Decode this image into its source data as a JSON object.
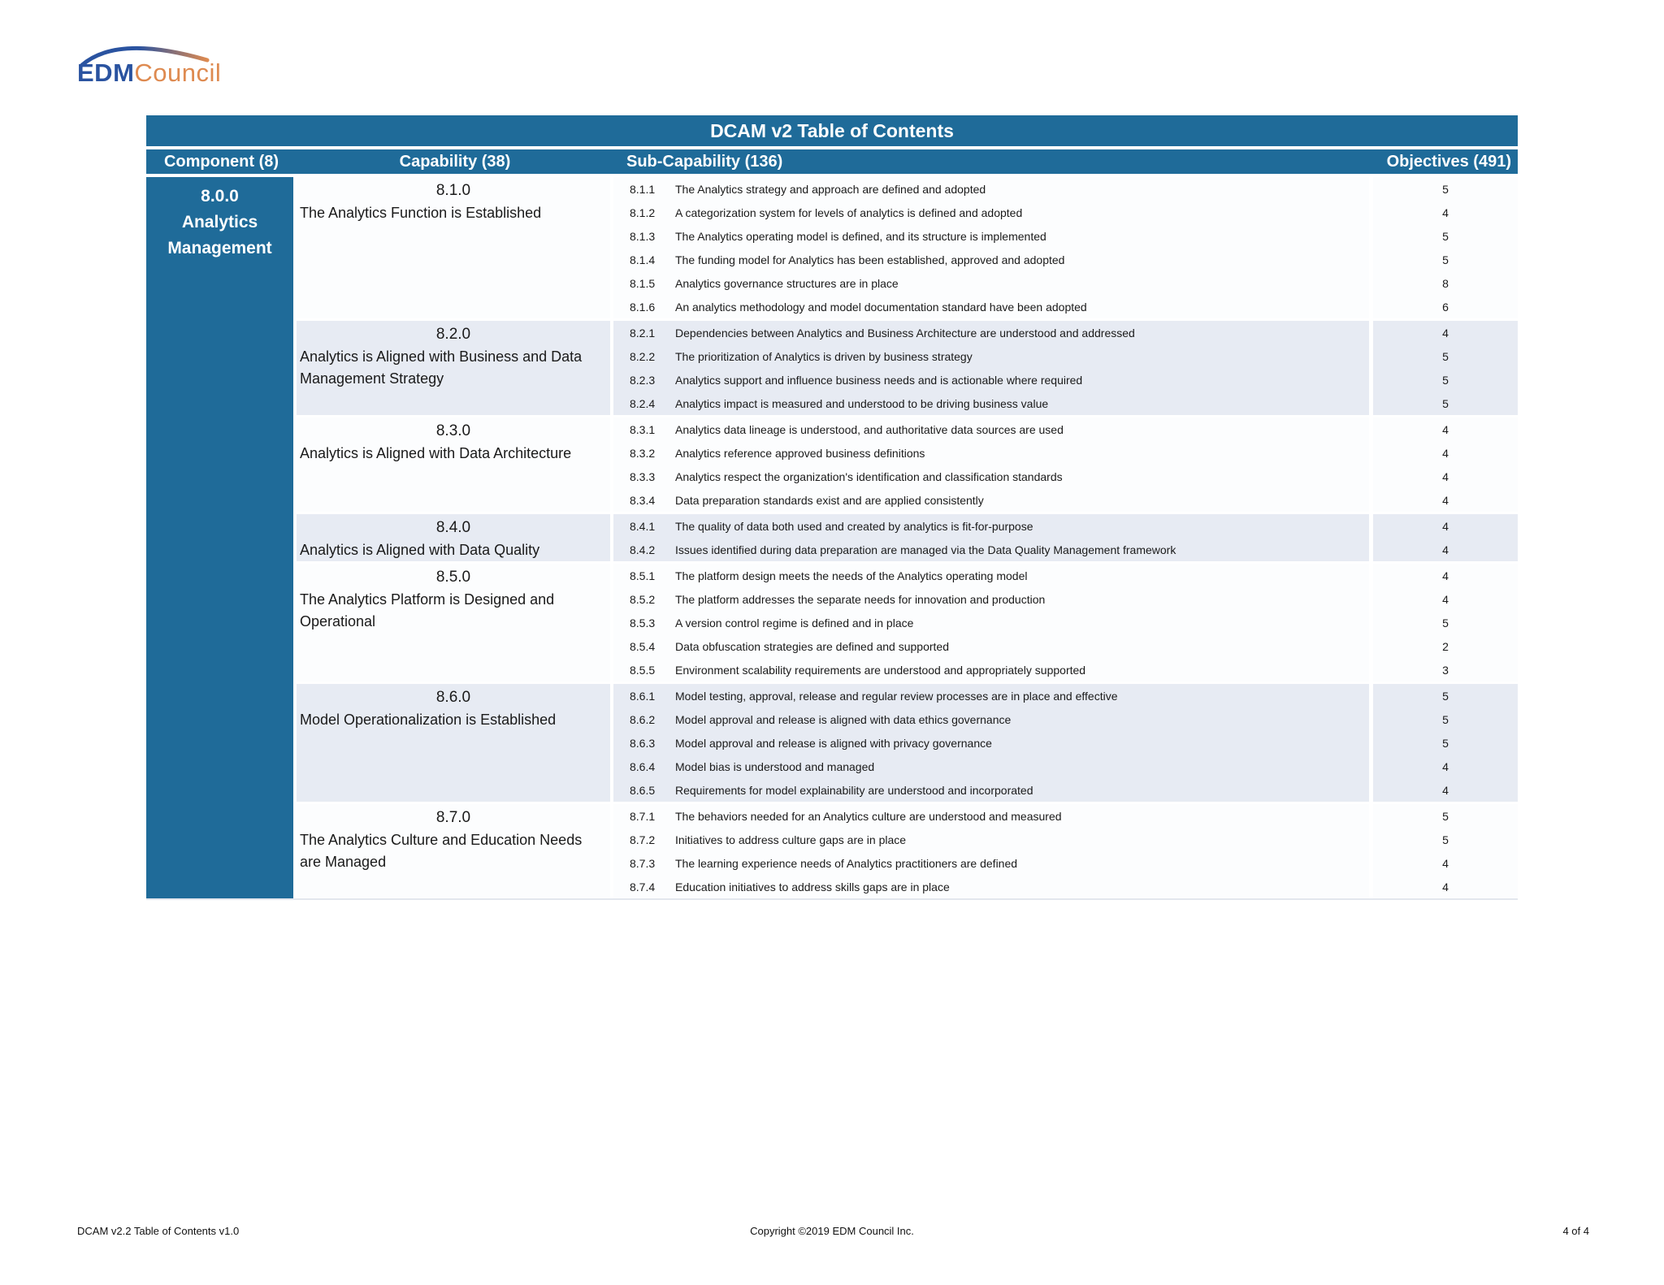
{
  "logo": {
    "edm": "EDM",
    "council": "Council"
  },
  "colors": {
    "header_blue": "#1f6b99",
    "shaded_row": "#e7ebf3",
    "logo_blue": "#2a53a0",
    "logo_orange": "#de8a50"
  },
  "table": {
    "title": "DCAM v2 Table of Contents",
    "columns": {
      "component": "Component (8)",
      "capability": "Capability (38)",
      "sub_capability": "Sub-Capability (136)",
      "objectives": "Objectives (491)"
    },
    "component": {
      "number": "8.0.0",
      "name": "Analytics Management"
    },
    "sections": [
      {
        "number": "8.1.0",
        "name": "The Analytics Function is Established",
        "shaded": false,
        "items": [
          {
            "number": "8.1.1",
            "text": "The Analytics strategy and approach are defined and adopted",
            "objectives": "5"
          },
          {
            "number": "8.1.2",
            "text": "A categorization system for levels of analytics is defined and adopted",
            "objectives": "4"
          },
          {
            "number": "8.1.3",
            "text": "The Analytics operating model is defined, and its structure is implemented",
            "objectives": "5"
          },
          {
            "number": "8.1.4",
            "text": "The funding model for Analytics has been established, approved and adopted",
            "objectives": "5"
          },
          {
            "number": "8.1.5",
            "text": "Analytics governance structures are in place",
            "objectives": "8"
          },
          {
            "number": "8.1.6",
            "text": "An analytics methodology and model documentation standard have been adopted",
            "objectives": "6"
          }
        ]
      },
      {
        "number": "8.2.0",
        "name": "Analytics is Aligned with Business and Data Management Strategy",
        "shaded": true,
        "items": [
          {
            "number": "8.2.1",
            "text": "Dependencies between Analytics and Business Architecture are understood and addressed",
            "objectives": "4"
          },
          {
            "number": "8.2.2",
            "text": "The prioritization of Analytics is driven by business strategy",
            "objectives": "5"
          },
          {
            "number": "8.2.3",
            "text": "Analytics support and influence business needs and is actionable where required",
            "objectives": "5"
          },
          {
            "number": "8.2.4",
            "text": "Analytics impact is measured and understood to be driving business value",
            "objectives": "5"
          }
        ]
      },
      {
        "number": "8.3.0",
        "name": "Analytics is Aligned with Data Architecture",
        "shaded": false,
        "items": [
          {
            "number": "8.3.1",
            "text": "Analytics data lineage is understood, and authoritative data sources are used",
            "objectives": "4"
          },
          {
            "number": "8.3.2",
            "text": "Analytics reference approved business definitions",
            "objectives": "4"
          },
          {
            "number": "8.3.3",
            "text": "Analytics respect the organization's identification and classification standards",
            "objectives": "4"
          },
          {
            "number": "8.3.4",
            "text": "Data preparation standards exist and are applied consistently",
            "objectives": "4"
          }
        ]
      },
      {
        "number": "8.4.0",
        "name": "Analytics is Aligned with Data Quality",
        "shaded": true,
        "items": [
          {
            "number": "8.4.1",
            "text": "The quality of data both used and created by analytics is fit-for-purpose",
            "objectives": "4"
          },
          {
            "number": "8.4.2",
            "text": "Issues identified during data preparation are managed via the Data Quality Management framework",
            "objectives": "4"
          }
        ]
      },
      {
        "number": "8.5.0",
        "name": "The Analytics Platform is Designed and Operational",
        "shaded": false,
        "items": [
          {
            "number": "8.5.1",
            "text": "The platform design meets the needs of the Analytics operating model",
            "objectives": "4"
          },
          {
            "number": "8.5.2",
            "text": "The platform addresses the separate needs for innovation and production",
            "objectives": "4"
          },
          {
            "number": "8.5.3",
            "text": "A version control regime is defined and in place",
            "objectives": "5"
          },
          {
            "number": "8.5.4",
            "text": "Data obfuscation strategies are defined and supported",
            "objectives": "2"
          },
          {
            "number": "8.5.5",
            "text": "Environment scalability requirements are understood and appropriately supported",
            "objectives": "3"
          }
        ]
      },
      {
        "number": "8.6.0",
        "name": "Model Operationalization is Established",
        "shaded": true,
        "items": [
          {
            "number": "8.6.1",
            "text": "Model testing, approval, release and regular review processes are in place and effective",
            "objectives": "5"
          },
          {
            "number": "8.6.2",
            "text": "Model approval and release is aligned with data ethics governance",
            "objectives": "5"
          },
          {
            "number": "8.6.3",
            "text": "Model approval and release is aligned with privacy governance",
            "objectives": "5"
          },
          {
            "number": "8.6.4",
            "text": "Model bias is understood and managed",
            "objectives": "4"
          },
          {
            "number": "8.6.5",
            "text": "Requirements for model explainability are understood and incorporated",
            "objectives": "4"
          }
        ]
      },
      {
        "number": "8.7.0",
        "name": "The Analytics Culture and Education Needs are Managed",
        "shaded": false,
        "items": [
          {
            "number": "8.7.1",
            "text": "The behaviors needed for an Analytics culture are understood and measured",
            "objectives": "5"
          },
          {
            "number": "8.7.2",
            "text": "Initiatives to address culture gaps are in place",
            "objectives": "5"
          },
          {
            "number": "8.7.3",
            "text": "The learning experience needs of Analytics practitioners are defined",
            "objectives": "4"
          },
          {
            "number": "8.7.4",
            "text": "Education initiatives to address skills gaps are in place",
            "objectives": "4"
          }
        ]
      }
    ]
  },
  "footer": {
    "left": "DCAM v2.2 Table of Contents v1.0",
    "center": "Copyright ©2019 EDM Council Inc.",
    "right": "4 of 4"
  }
}
